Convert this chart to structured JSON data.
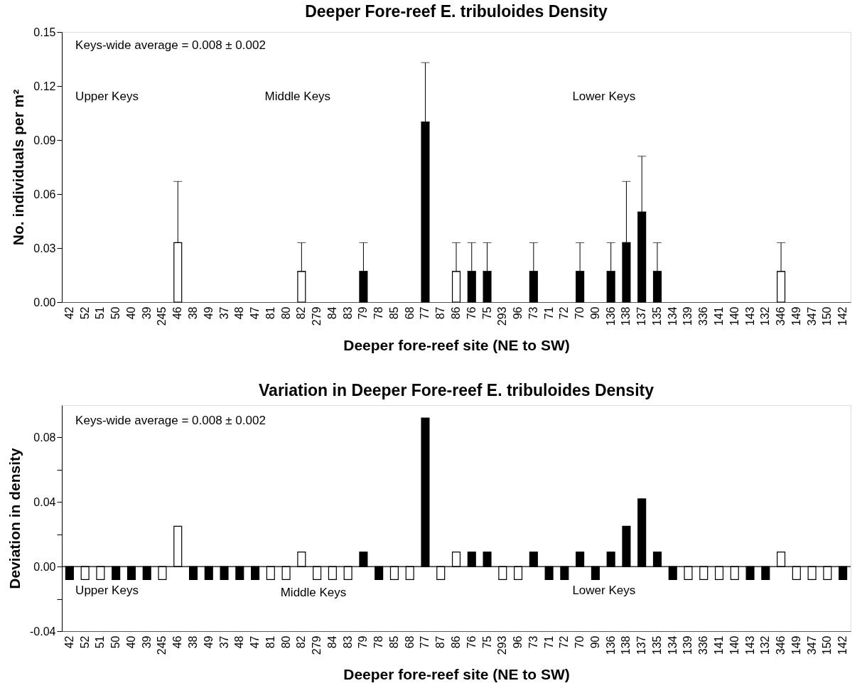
{
  "chart_data": [
    {
      "type": "bar",
      "title": "Deeper Fore-reef E. tribuloides Density",
      "xlabel": "Deeper fore-reef site (NE to SW)",
      "ylabel": "No. individuals per m²",
      "categories": [
        "42",
        "52",
        "51",
        "50",
        "40",
        "39",
        "245",
        "46",
        "38",
        "49",
        "37",
        "48",
        "47",
        "81",
        "80",
        "82",
        "279",
        "84",
        "83",
        "79",
        "78",
        "85",
        "68",
        "77",
        "87",
        "86",
        "76",
        "75",
        "293",
        "96",
        "73",
        "71",
        "72",
        "70",
        "90",
        "136",
        "138",
        "137",
        "135",
        "134",
        "139",
        "336",
        "141",
        "140",
        "143",
        "132",
        "346",
        "149",
        "347",
        "150",
        "142"
      ],
      "values": [
        0,
        0,
        0,
        0,
        0,
        0,
        0,
        0.033,
        0,
        0,
        0,
        0,
        0,
        0,
        0,
        0.017,
        0,
        0,
        0,
        0.017,
        0,
        0,
        0,
        0.1,
        0,
        0.017,
        0.017,
        0.017,
        0,
        0,
        0.017,
        0,
        0,
        0.017,
        0,
        0.017,
        0.033,
        0.05,
        0.017,
        0,
        0,
        0,
        0,
        0,
        0,
        0,
        0.017,
        0,
        0,
        0,
        0
      ],
      "errors": [
        null,
        null,
        null,
        null,
        null,
        null,
        null,
        [
          0.033,
          0.067
        ],
        null,
        null,
        null,
        null,
        null,
        null,
        null,
        [
          0.017,
          0.033
        ],
        null,
        null,
        null,
        [
          0.017,
          0.033
        ],
        null,
        null,
        null,
        [
          0.1,
          0.133
        ],
        null,
        [
          0.017,
          0.033
        ],
        [
          0.017,
          0.033
        ],
        [
          0.017,
          0.033
        ],
        null,
        null,
        [
          0.017,
          0.033
        ],
        null,
        null,
        [
          0.017,
          0.033
        ],
        null,
        [
          0.017,
          0.033
        ],
        [
          0.033,
          0.067
        ],
        [
          0.05,
          0.081
        ],
        [
          0.017,
          0.033
        ],
        null,
        null,
        null,
        null,
        null,
        null,
        null,
        [
          0.017,
          0.033
        ],
        null,
        null,
        null,
        null
      ],
      "colors": [
        "#000000",
        "#ffffff",
        "#ffffff",
        "#000000",
        "#000000",
        "#000000",
        "#ffffff",
        "#ffffff",
        "#000000",
        "#000000",
        "#000000",
        "#000000",
        "#000000",
        "#ffffff",
        "#ffffff",
        "#ffffff",
        "#ffffff",
        "#ffffff",
        "#ffffff",
        "#000000",
        "#000000",
        "#ffffff",
        "#ffffff",
        "#000000",
        "#ffffff",
        "#ffffff",
        "#000000",
        "#000000",
        "#ffffff",
        "#ffffff",
        "#000000",
        "#000000",
        "#000000",
        "#000000",
        "#000000",
        "#000000",
        "#000000",
        "#000000",
        "#000000",
        "#000000",
        "#ffffff",
        "#ffffff",
        "#ffffff",
        "#ffffff",
        "#000000",
        "#000000",
        "#ffffff",
        "#ffffff",
        "#ffffff",
        "#ffffff",
        "#000000"
      ],
      "ylim": [
        0,
        0.15
      ],
      "yticks": [
        {
          "value": 0,
          "label": "0.00"
        },
        {
          "value": 0.03,
          "label": "0.03"
        },
        {
          "value": 0.06,
          "label": "0.06"
        },
        {
          "value": 0.09,
          "label": "0.09"
        },
        {
          "value": 0.12,
          "label": "0.12"
        },
        {
          "value": 0.15,
          "label": "0.15"
        }
      ],
      "annotations": [
        "Keys-wide average = 0.008 ± 0.002",
        "Upper Keys",
        "Middle Keys",
        "Lower Keys"
      ],
      "grid": false
    },
    {
      "type": "bar",
      "title": "Variation in Deeper Fore-reef E. tribuloides Density",
      "xlabel": "Deeper fore-reef site (NE to SW)",
      "ylabel": "Deviation in density",
      "categories": [
        "42",
        "52",
        "51",
        "50",
        "40",
        "39",
        "245",
        "46",
        "38",
        "49",
        "37",
        "48",
        "47",
        "81",
        "80",
        "82",
        "279",
        "84",
        "83",
        "79",
        "78",
        "85",
        "68",
        "77",
        "87",
        "86",
        "76",
        "75",
        "293",
        "96",
        "73",
        "71",
        "72",
        "70",
        "90",
        "136",
        "138",
        "137",
        "135",
        "134",
        "139",
        "336",
        "141",
        "140",
        "143",
        "132",
        "346",
        "149",
        "347",
        "150",
        "142"
      ],
      "values": [
        -0.008,
        -0.008,
        -0.008,
        -0.008,
        -0.008,
        -0.008,
        -0.008,
        0.025,
        -0.008,
        -0.008,
        -0.008,
        -0.008,
        -0.008,
        -0.008,
        -0.008,
        0.009,
        -0.008,
        -0.008,
        -0.008,
        0.009,
        -0.008,
        -0.008,
        -0.008,
        0.092,
        -0.008,
        0.009,
        0.009,
        0.009,
        -0.008,
        -0.008,
        0.009,
        -0.008,
        -0.008,
        0.009,
        -0.008,
        0.009,
        0.025,
        0.042,
        0.009,
        -0.008,
        -0.008,
        -0.008,
        -0.008,
        -0.008,
        -0.008,
        -0.008,
        0.009,
        -0.008,
        -0.008,
        -0.008,
        -0.008
      ],
      "colors": [
        "#000000",
        "#ffffff",
        "#ffffff",
        "#000000",
        "#000000",
        "#000000",
        "#ffffff",
        "#ffffff",
        "#000000",
        "#000000",
        "#000000",
        "#000000",
        "#000000",
        "#ffffff",
        "#ffffff",
        "#ffffff",
        "#ffffff",
        "#ffffff",
        "#ffffff",
        "#000000",
        "#000000",
        "#ffffff",
        "#ffffff",
        "#000000",
        "#ffffff",
        "#ffffff",
        "#000000",
        "#000000",
        "#ffffff",
        "#ffffff",
        "#000000",
        "#000000",
        "#000000",
        "#000000",
        "#000000",
        "#000000",
        "#000000",
        "#000000",
        "#000000",
        "#000000",
        "#ffffff",
        "#ffffff",
        "#ffffff",
        "#ffffff",
        "#000000",
        "#000000",
        "#ffffff",
        "#ffffff",
        "#ffffff",
        "#ffffff",
        "#000000"
      ],
      "ylim": [
        -0.04,
        0.1
      ],
      "yticks": [
        {
          "value": -0.04,
          "label": "-0.04"
        },
        {
          "value": -0.02,
          "label": null
        },
        {
          "value": 0,
          "label": "0.00"
        },
        {
          "value": 0.02,
          "label": null
        },
        {
          "value": 0.04,
          "label": "0.04"
        },
        {
          "value": 0.06,
          "label": null
        },
        {
          "value": 0.08,
          "label": "0.08"
        }
      ],
      "ref_lines": [
        {
          "axis": "y",
          "value": 0,
          "color": "#000000"
        }
      ],
      "annotations": [
        "Keys-wide average = 0.008 ± 0.002",
        "Upper Keys",
        "Middle Keys",
        "Lower Keys"
      ],
      "grid": false
    }
  ]
}
